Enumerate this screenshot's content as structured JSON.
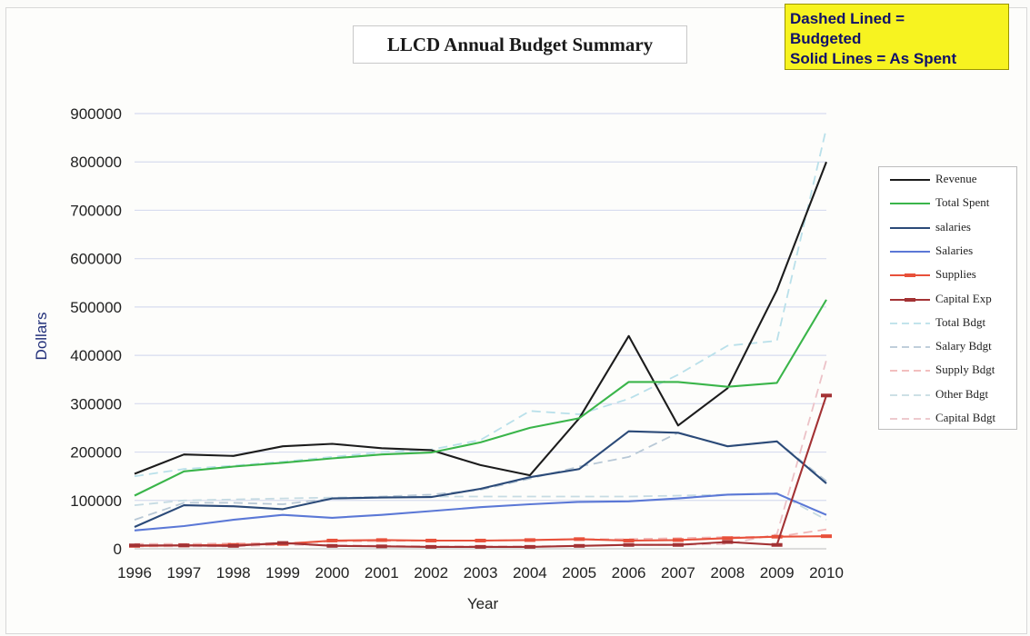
{
  "note": {
    "lines": [
      "Dashed Lined =",
      "Budgeted",
      "Solid Lines = As Spent"
    ]
  },
  "chart_data": {
    "type": "line",
    "title": "LLCD Annual Budget Summary",
    "xlabel": "Year",
    "ylabel": "Dollars",
    "ylim": [
      0,
      900000
    ],
    "yticks": [
      "0",
      "100000",
      "200000",
      "300000",
      "400000",
      "500000",
      "600000",
      "700000",
      "800000",
      "900000"
    ],
    "categories": [
      "1996",
      "1997",
      "1998",
      "1999",
      "2000",
      "2001",
      "2002",
      "2003",
      "2004",
      "2005",
      "2006",
      "2007",
      "2008",
      "2009",
      "2010"
    ],
    "grid": true,
    "legend_position": "right",
    "series": [
      {
        "name": "Revenue",
        "color": "#1c1c1c",
        "dash": "solid",
        "marker": "none",
        "values": [
          155000,
          195000,
          192000,
          212000,
          217000,
          208000,
          204000,
          173000,
          152000,
          270000,
          440000,
          255000,
          332000,
          535000,
          800000
        ]
      },
      {
        "name": "Total Spent",
        "color": "#3ab54a",
        "dash": "solid",
        "marker": "none",
        "values": [
          110000,
          160000,
          170000,
          178000,
          187000,
          195000,
          199000,
          220000,
          250000,
          270000,
          345000,
          345000,
          335000,
          343000,
          515000
        ]
      },
      {
        "name": "salaries",
        "color": "#2b4a78",
        "dash": "solid",
        "marker": "none",
        "values": [
          45000,
          90000,
          88000,
          82000,
          104000,
          106000,
          107000,
          124000,
          148000,
          165000,
          243000,
          240000,
          212000,
          222000,
          135000
        ]
      },
      {
        "name": "Salaries",
        "color": "#5b78d6",
        "dash": "solid",
        "marker": "none",
        "values": [
          38000,
          47000,
          60000,
          70000,
          64000,
          70000,
          78000,
          86000,
          92000,
          97000,
          98000,
          104000,
          112000,
          114000,
          70000
        ]
      },
      {
        "name": "Supplies",
        "color": "#e8503a",
        "dash": "solid",
        "marker": "dash",
        "values": [
          6000,
          7000,
          8000,
          10000,
          17000,
          18000,
          17000,
          17000,
          18000,
          20000,
          17000,
          18000,
          22000,
          25000,
          26000
        ]
      },
      {
        "name": "Capital Exp",
        "color": "#a33234",
        "dash": "solid",
        "marker": "dash",
        "values": [
          7000,
          7000,
          6000,
          12000,
          6000,
          5000,
          4000,
          4000,
          4000,
          6000,
          8000,
          8000,
          14000,
          8000,
          317000
        ]
      },
      {
        "name": "Total Bdgt",
        "color": "#b9e0ea",
        "dash": "dashed",
        "marker": "none",
        "values": [
          150000,
          165000,
          172000,
          180000,
          190000,
          200000,
          205000,
          225000,
          285000,
          278000,
          310000,
          360000,
          420000,
          430000,
          870000
        ]
      },
      {
        "name": "Salary Bdgt",
        "color": "#b8c8d6",
        "dash": "dashed",
        "marker": "none",
        "values": [
          60000,
          95000,
          95000,
          92000,
          104000,
          108000,
          112000,
          122000,
          145000,
          170000,
          190000,
          240000,
          212000,
          222000,
          140000
        ]
      },
      {
        "name": "Supply Bdgt",
        "color": "#f1b6b6",
        "dash": "dashed",
        "marker": "none",
        "values": [
          10000,
          10000,
          11000,
          12000,
          15000,
          16000,
          17000,
          17000,
          18000,
          20000,
          20000,
          22000,
          24000,
          25000,
          40000
        ]
      },
      {
        "name": "Other Bdgt",
        "color": "#c6dbe3",
        "dash": "dashed",
        "marker": "none",
        "values": [
          90000,
          100000,
          102000,
          104000,
          106000,
          107000,
          108000,
          108000,
          108000,
          108000,
          108000,
          110000,
          112000,
          115000,
          60000
        ]
      },
      {
        "name": "Capital Bdgt",
        "color": "#ecc2c7",
        "dash": "dashed",
        "marker": "none",
        "values": [
          5000,
          5000,
          5000,
          8000,
          8000,
          6000,
          5000,
          5000,
          5000,
          6000,
          8000,
          8000,
          10000,
          30000,
          390000
        ]
      }
    ]
  }
}
